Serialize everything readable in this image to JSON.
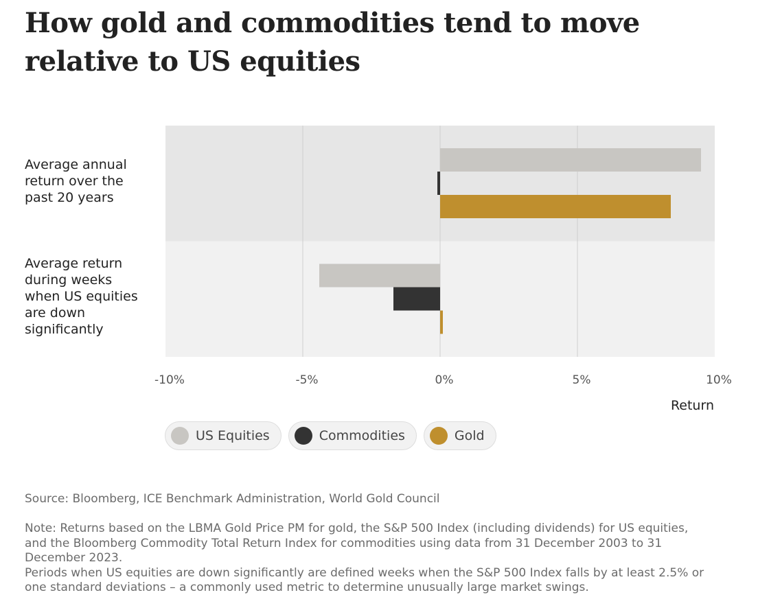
{
  "title": "How gold and commodities tend to move relative to US equities",
  "row_labels": [
    [
      "Average annual",
      "return over the",
      "past 20 years"
    ],
    [
      "Average return",
      "during weeks",
      "when US equities",
      "are down",
      "significantly"
    ]
  ],
  "axis_title": "Return",
  "colors": {
    "us_equities": "#c8c6c2",
    "commodities": "#333333",
    "gold": "#bf8f2e",
    "panel_top": "#e6e6e6",
    "panel_bottom": "#f1f1f1",
    "gridline": "#cfcfcf"
  },
  "legend": [
    {
      "label": "US Equities",
      "color": "#c8c6c2"
    },
    {
      "label": "Commodities",
      "color": "#333333"
    },
    {
      "label": "Gold",
      "color": "#bf8f2e"
    }
  ],
  "source": "Source: Bloomberg, ICE Benchmark Administration, World Gold Council",
  "note": {
    "para1": "Note: Returns based on the LBMA Gold Price PM for gold, the S&P 500 Index (including dividends) for US equities, and the Bloomberg Commodity Total Return Index for commodities using data from 31 December 2003 to 31 December 2023.",
    "para2": "Periods when US equities are down significantly are defined weeks when the S&P 500 Index falls by at least 2.5% or one standard deviations – a commonly used metric to determine unusually large market swings."
  },
  "chart_data": {
    "type": "bar",
    "orientation": "horizontal",
    "categories": [
      "Average annual return over the past 20 years",
      "Average return during weeks when US equities are down significantly"
    ],
    "series": [
      {
        "name": "US Equities",
        "values": [
          9.5,
          -4.4
        ]
      },
      {
        "name": "Commodities",
        "values": [
          -0.1,
          -1.7
        ]
      },
      {
        "name": "Gold",
        "values": [
          8.4,
          0.1
        ]
      }
    ],
    "xlabel": "Return",
    "xlim": [
      -10,
      10
    ],
    "xticks": [
      -10,
      -5,
      0,
      5,
      10
    ],
    "xtick_labels": [
      "-10%",
      "-5%",
      "0%",
      "5%",
      "10%"
    ],
    "unit": "%",
    "grid": true,
    "legend_position": "bottom-left"
  }
}
